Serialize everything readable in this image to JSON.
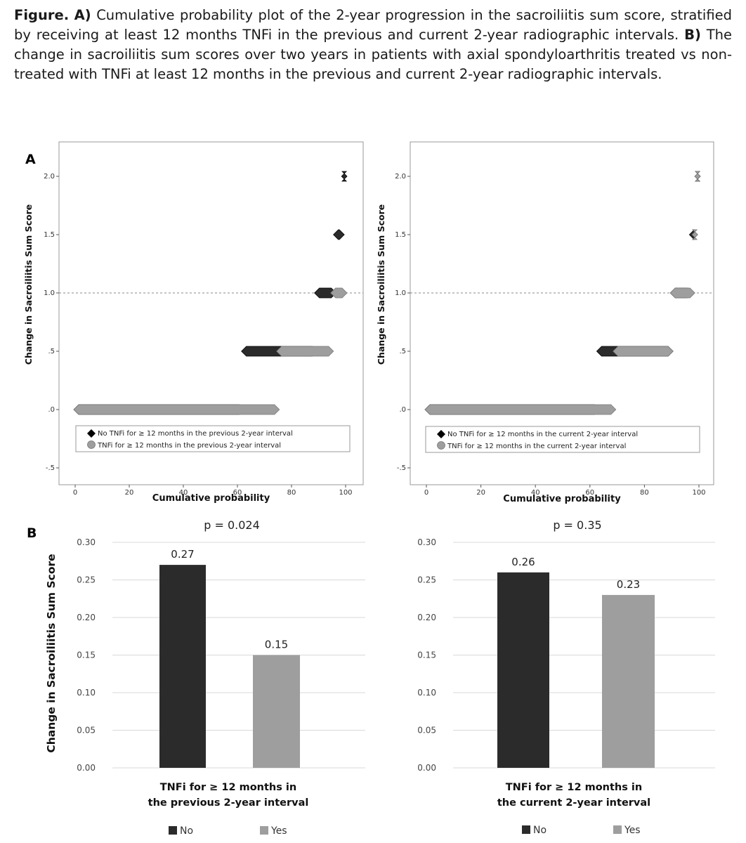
{
  "caption": {
    "prefix": "Figure.",
    "a_label": "A)",
    "a_text": "Cumulative probability plot of the 2-year progression in the sacroiliitis sum score, stratified by receiving at least 12 months TNFi in the previous and current 2-year radiographic intervals.",
    "b_label": "B)",
    "b_text": "The change in sacroiliitis sum scores over two years in patients with axial spondyloarthritis treated vs non-treated with TNFi at least 12 months in the previous and current 2-year radiographic intervals."
  },
  "panel_a_label": "A",
  "panel_b_label": "B",
  "colors": {
    "no": "#2b2b2b",
    "yes": "#9e9e9e",
    "frame": "#9a9a9a",
    "grid": "#d9d9d9"
  },
  "chart_data": [
    {
      "type": "scatter",
      "panel": "A-left",
      "xlabel": "Cumulative probability",
      "ylabel": "Change in Sacroiliitis Sum Score",
      "xlim": [
        0,
        100
      ],
      "ylim": [
        -0.5,
        2.0
      ],
      "xticks": [
        "0",
        "20",
        "40",
        "60",
        "80",
        "100"
      ],
      "yticks": [
        "-.5",
        ".0",
        ".5",
        "1.0",
        "1.5",
        "2.0"
      ],
      "reference_line_y": 1.0,
      "series": [
        {
          "name": "No TNFi for ≥ 12 months in the previous 2-year interval",
          "segments": [
            {
              "y": 0.0,
              "x": [
                0,
                62
              ]
            },
            {
              "y": 0.5,
              "x": [
                62,
                89
              ]
            },
            {
              "y": 1.0,
              "x": [
                89,
                96
              ]
            },
            {
              "y": 1.5,
              "x": [
                96,
                99
              ]
            },
            {
              "y": 2.0,
              "x": [
                99,
                100
              ]
            }
          ]
        },
        {
          "name": "TNFi for ≥ 12 months in the previous 2-year interval",
          "segments": [
            {
              "y": 0.0,
              "x": [
                0,
                75
              ]
            },
            {
              "y": 0.5,
              "x": [
                75,
                95
              ]
            },
            {
              "y": 1.0,
              "x": [
                95,
                100
              ]
            }
          ]
        }
      ]
    },
    {
      "type": "scatter",
      "panel": "A-right",
      "xlabel": "Cumulative probability",
      "ylabel": "Change in Sacroiliitis Sum Score",
      "xlim": [
        0,
        100
      ],
      "ylim": [
        -0.5,
        2.0
      ],
      "xticks": [
        "0",
        "20",
        "40",
        "60",
        "80",
        "100"
      ],
      "yticks": [
        "-.5",
        ".0",
        ".5",
        "1.0",
        "1.5",
        "2.0"
      ],
      "reference_line_y": 1.0,
      "series": [
        {
          "name": "No TNFi for ≥ 12 months in the current 2-year interval",
          "segments": [
            {
              "y": 0.0,
              "x": [
                0,
                63
              ]
            },
            {
              "y": 0.5,
              "x": [
                63,
                90
              ]
            },
            {
              "y": 1.0,
              "x": [
                90,
                97
              ]
            },
            {
              "y": 1.5,
              "x": [
                97,
                99
              ]
            },
            {
              "y": 2.0,
              "x": [
                99,
                100
              ]
            }
          ]
        },
        {
          "name": "TNFi for ≥ 12 months in the current 2-year interval",
          "segments": [
            {
              "y": 0.0,
              "x": [
                0,
                69
              ]
            },
            {
              "y": 0.5,
              "x": [
                69,
                90
              ]
            },
            {
              "y": 1.0,
              "x": [
                90,
                98
              ]
            },
            {
              "y": 1.5,
              "x": [
                98,
                99
              ]
            },
            {
              "y": 2.0,
              "x": [
                99,
                100
              ]
            }
          ]
        }
      ]
    },
    {
      "type": "bar",
      "panel": "B-left",
      "title": "p = 0.024",
      "ylabel": "Change in Sacroiliitis Sum Score",
      "xlabel": "TNFi for ≥ 12 months in the previous 2-year interval",
      "ylim": [
        0,
        0.3
      ],
      "yticks": [
        "0.00",
        "0.05",
        "0.10",
        "0.15",
        "0.20",
        "0.25",
        "0.30"
      ],
      "categories": [
        "No",
        "Yes"
      ],
      "values": [
        0.27,
        0.15
      ],
      "data_labels": [
        "0.27",
        "0.15"
      ]
    },
    {
      "type": "bar",
      "panel": "B-right",
      "title": "p = 0.35",
      "xlabel": "TNFi for ≥ 12 months in the current 2-year interval",
      "ylim": [
        0,
        0.3
      ],
      "yticks": [
        "0.00",
        "0.05",
        "0.10",
        "0.15",
        "0.20",
        "0.25",
        "0.30"
      ],
      "categories": [
        "No",
        "Yes"
      ],
      "values": [
        0.26,
        0.23
      ],
      "data_labels": [
        "0.26",
        "0.23"
      ]
    }
  ]
}
